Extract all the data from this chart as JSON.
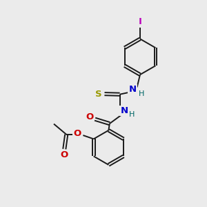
{
  "bg_color": "#ebebeb",
  "bond_color": "#1a1a1a",
  "N_color": "#0000cc",
  "O_color": "#cc0000",
  "S_color": "#999900",
  "I_color": "#bb00bb",
  "H_color": "#006666",
  "lw": 1.4,
  "figsize": [
    3.0,
    3.0
  ],
  "dpi": 100,
  "xlim": [
    0,
    10
  ],
  "ylim": [
    0,
    10
  ]
}
